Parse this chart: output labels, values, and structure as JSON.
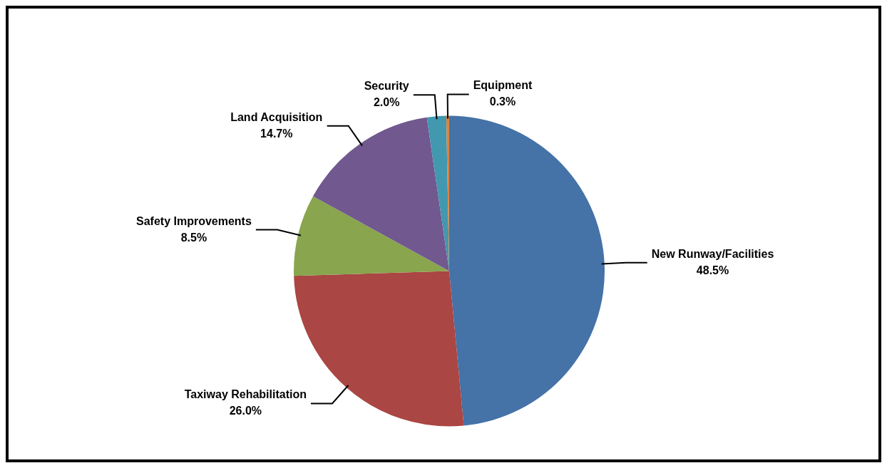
{
  "chart_data": {
    "type": "pie",
    "categories": [
      "New Runway/Facilities",
      "Taxiway Rehabilitation",
      "Safety Improvements",
      "Land Acquisition",
      "Security",
      "Equipment"
    ],
    "values": [
      48.5,
      26.0,
      8.5,
      14.7,
      2.0,
      0.3
    ],
    "colors": [
      "#4572a7",
      "#aa4643",
      "#89a54e",
      "#71588f",
      "#4198af",
      "#db843d"
    ],
    "value_labels": [
      "48.5%",
      "26.0%",
      "8.5%",
      "14.7%",
      "2.0%",
      "0.3%"
    ],
    "legend": false
  }
}
